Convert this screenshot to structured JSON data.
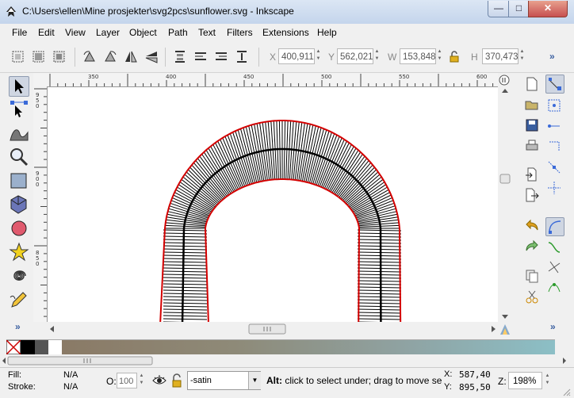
{
  "window": {
    "title": "C:\\Users\\ellen\\Mine prosjekter\\svg2pcs\\sunflower.svg - Inkscape"
  },
  "menu": [
    "File",
    "Edit",
    "View",
    "Layer",
    "Object",
    "Path",
    "Text",
    "Filters",
    "Extensions",
    "Help"
  ],
  "toolbar": {
    "x_label": "X",
    "x_value": "400,911",
    "y_label": "Y",
    "y_value": "562,021",
    "w_label": "W",
    "w_value": "153,848",
    "h_label": "H",
    "h_value": "370,473",
    "more": "»"
  },
  "ruler": {
    "top": [
      "350",
      "400",
      "450",
      "500",
      "550",
      "600"
    ],
    "left": [
      "9 5 0",
      "9 0 0",
      "8 5 0"
    ]
  },
  "toolbox_more": "»",
  "status": {
    "fill_label": "Fill:",
    "fill_value": "N/A",
    "stroke_label": "Stroke:",
    "stroke_value": "N/A",
    "opacity_label": "O:",
    "opacity_value": "100",
    "layer_value": "-satin",
    "message_bold": "Alt:",
    "message": " click to select under; drag to move sel",
    "cursor_x_label": "X:",
    "cursor_x": "587,40",
    "cursor_y_label": "Y:",
    "cursor_y": "895,50",
    "zoom_label": "Z:",
    "zoom_value": "198%"
  },
  "colors": {
    "accent": "#3a5fa0",
    "shape_outline": "#d40000"
  },
  "icons": [
    "inkscape-logo-icon",
    "new-document-icon",
    "select-tool-icon",
    "node-tool-icon",
    "tweak-tool-icon",
    "zoom-tool-icon",
    "rect-tool-icon",
    "3dbox-tool-icon",
    "ellipse-tool-icon",
    "star-tool-icon",
    "spiral-tool-icon",
    "pencil-tool-icon",
    "lock-icon",
    "eye-icon",
    "snap-icon"
  ]
}
